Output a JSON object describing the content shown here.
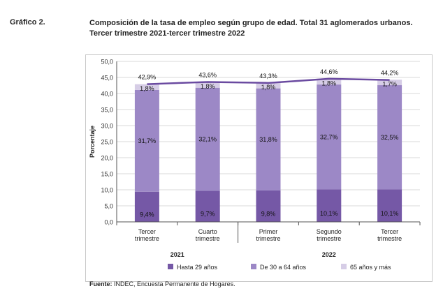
{
  "header": {
    "figure_label": "Gráfico 2.",
    "title_line1": "Composición de la tasa de empleo según grupo de edad. Total 31 aglomerados urbanos.",
    "title_line2": "Tercer trimestre 2021-tercer trimestre 2022"
  },
  "source": {
    "label": "Fuente:",
    "text": " INDEC, Encuesta Permanente de Hogares."
  },
  "colors": {
    "hasta29": "#7558a6",
    "de30a64": "#9c88c6",
    "mas65": "#d6cde6",
    "line": "#6a4aa0",
    "grid": "#d9d9d9",
    "axis": "#555555"
  },
  "chart_data": {
    "type": "bar",
    "stacked": true,
    "ylabel": "Porcentaje",
    "ylim": [
      0,
      50
    ],
    "yticks": [
      "0,0",
      "5,0",
      "10,0",
      "15,0",
      "20,0",
      "25,0",
      "30,0",
      "35,0",
      "40,0",
      "45,0",
      "50,0"
    ],
    "categories": [
      [
        "Tercer",
        "trimestre"
      ],
      [
        "Cuarto",
        "trimestre"
      ],
      [
        "Primer",
        "trimestre"
      ],
      [
        "Segundo",
        "trimestre"
      ],
      [
        "Tercer",
        "trimestre"
      ]
    ],
    "year_groups": [
      {
        "label": "2021",
        "categories": [
          0,
          1
        ]
      },
      {
        "label": "2022",
        "categories": [
          2,
          3,
          4
        ]
      }
    ],
    "series": [
      {
        "name": "Hasta 29 años",
        "values": [
          9.4,
          9.7,
          9.8,
          10.1,
          10.1
        ],
        "labels": [
          "9,4%",
          "9,7%",
          "9,8%",
          "10,1%",
          "10,1%"
        ]
      },
      {
        "name": "De 30 a 64 años",
        "values": [
          31.7,
          32.1,
          31.8,
          32.7,
          32.5
        ],
        "labels": [
          "31,7%",
          "32,1%",
          "31,8%",
          "32,7%",
          "32,5%"
        ]
      },
      {
        "name": "65 años y más",
        "values": [
          1.8,
          1.8,
          1.8,
          1.8,
          1.7
        ],
        "labels": [
          "1,8%",
          "1,8%",
          "1,8%",
          "1,8%",
          "1,7%"
        ]
      }
    ],
    "total": {
      "values": [
        42.9,
        43.6,
        43.3,
        44.6,
        44.2
      ],
      "labels": [
        "42,9%",
        "43,6%",
        "43,3%",
        "44,6%",
        "44,2%"
      ]
    },
    "legend_position": "bottom",
    "grid": true
  }
}
